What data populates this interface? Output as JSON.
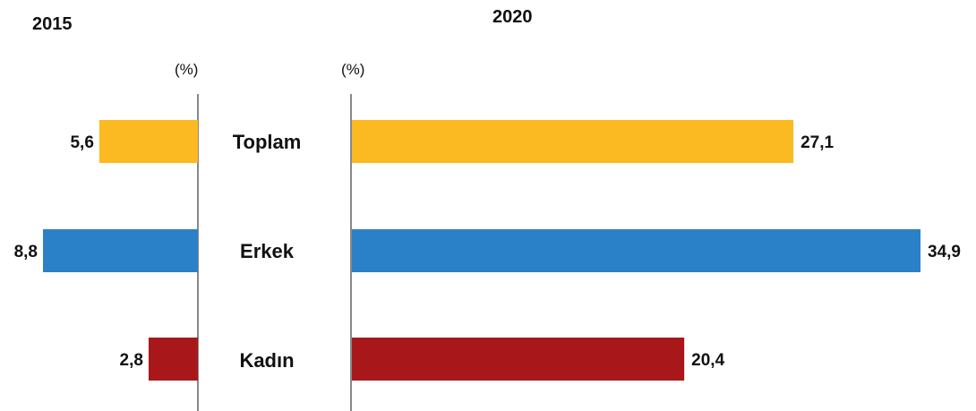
{
  "chart_data": [
    {
      "type": "bar",
      "orientation": "horizontal",
      "direction": "right-to-left",
      "title": "2015",
      "unit_label": "(%)",
      "categories": [
        "Toplam",
        "Erkek",
        "Kadın"
      ],
      "values": [
        5.6,
        8.8,
        2.8
      ],
      "value_labels": [
        "5,6",
        "8,8",
        "2,8"
      ],
      "colors": [
        "#FBBA22",
        "#2B81C8",
        "#A8181B"
      ],
      "xlim": [
        0,
        8.8
      ]
    },
    {
      "type": "bar",
      "orientation": "horizontal",
      "direction": "left-to-right",
      "title": "2020",
      "unit_label": "(%)",
      "categories": [
        "Toplam",
        "Erkek",
        "Kadın"
      ],
      "values": [
        27.1,
        34.9,
        20.4
      ],
      "value_labels": [
        "27,1",
        "34,9",
        "20,4"
      ],
      "colors": [
        "#FBBA22",
        "#2B81C8",
        "#A8181B"
      ],
      "xlim": [
        0,
        34.9
      ]
    }
  ]
}
